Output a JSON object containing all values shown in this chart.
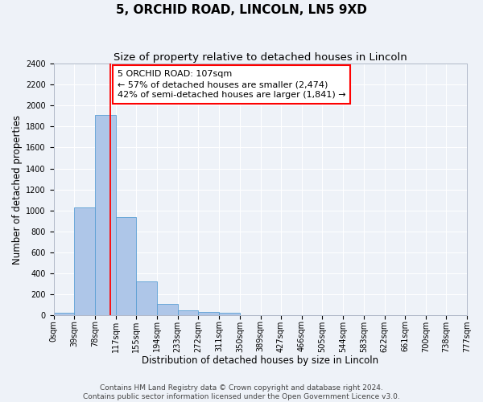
{
  "title": "5, ORCHID ROAD, LINCOLN, LN5 9XD",
  "subtitle": "Size of property relative to detached houses in Lincoln",
  "xlabel": "Distribution of detached houses by size in Lincoln",
  "ylabel": "Number of detached properties",
  "bin_edges": [
    0,
    39,
    78,
    117,
    155,
    194,
    233,
    272,
    311,
    350,
    389,
    427,
    466,
    505,
    544,
    583,
    622,
    661,
    700,
    738,
    777
  ],
  "bin_labels": [
    "0sqm",
    "39sqm",
    "78sqm",
    "117sqm",
    "155sqm",
    "194sqm",
    "233sqm",
    "272sqm",
    "311sqm",
    "350sqm",
    "389sqm",
    "427sqm",
    "466sqm",
    "505sqm",
    "544sqm",
    "583sqm",
    "622sqm",
    "661sqm",
    "700sqm",
    "738sqm",
    "777sqm"
  ],
  "counts": [
    20,
    1030,
    1910,
    940,
    320,
    105,
    50,
    30,
    20,
    0,
    0,
    0,
    0,
    0,
    0,
    0,
    0,
    0,
    0,
    0
  ],
  "bar_color": "#aec6e8",
  "bar_edge_color": "#5a9fd4",
  "property_line_x": 107,
  "property_line_color": "red",
  "annotation_line1": "5 ORCHID ROAD: 107sqm",
  "annotation_line2": "← 57% of detached houses are smaller (2,474)",
  "annotation_line3": "42% of semi-detached houses are larger (1,841) →",
  "annotation_box_edgecolor": "red",
  "annotation_box_facecolor": "white",
  "ylim": [
    0,
    2400
  ],
  "yticks": [
    0,
    200,
    400,
    600,
    800,
    1000,
    1200,
    1400,
    1600,
    1800,
    2000,
    2200,
    2400
  ],
  "footer_line1": "Contains HM Land Registry data © Crown copyright and database right 2024.",
  "footer_line2": "Contains public sector information licensed under the Open Government Licence v3.0.",
  "background_color": "#eef2f8",
  "grid_color": "white",
  "title_fontsize": 11,
  "subtitle_fontsize": 9.5,
  "axis_label_fontsize": 8.5,
  "tick_fontsize": 7,
  "annotation_fontsize": 8,
  "footer_fontsize": 6.5
}
